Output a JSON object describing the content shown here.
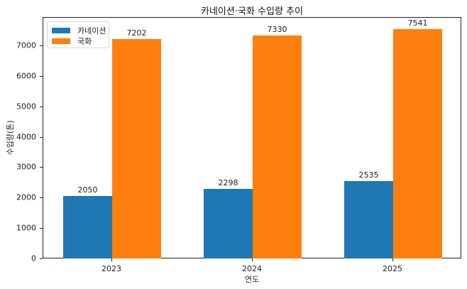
{
  "chart_data": {
    "type": "bar",
    "title": "카네이션·국화 수입량 추이",
    "xlabel": "연도",
    "ylabel": "수입량(톤)",
    "categories": [
      "2023",
      "2024",
      "2025"
    ],
    "series": [
      {
        "name": "카네이션",
        "color": "#1f77b4",
        "values": [
          2050,
          2298,
          2535
        ]
      },
      {
        "name": "국화",
        "color": "#ff7f0e",
        "values": [
          7202,
          7330,
          7541
        ]
      }
    ],
    "ylim": [
      0,
      7900
    ],
    "yticks": [
      0,
      1000,
      2000,
      3000,
      4000,
      5000,
      6000,
      7000
    ],
    "grid": false,
    "legend_position": "upper left",
    "data_labels": true
  },
  "title": "카네이션·국화 수입량 추이",
  "xlabel": "연도",
  "ylabel": "수입량(톤)",
  "legend": {
    "items": [
      {
        "label": "카네이션",
        "color": "#1f77b4"
      },
      {
        "label": "국화",
        "color": "#ff7f0e"
      }
    ]
  }
}
